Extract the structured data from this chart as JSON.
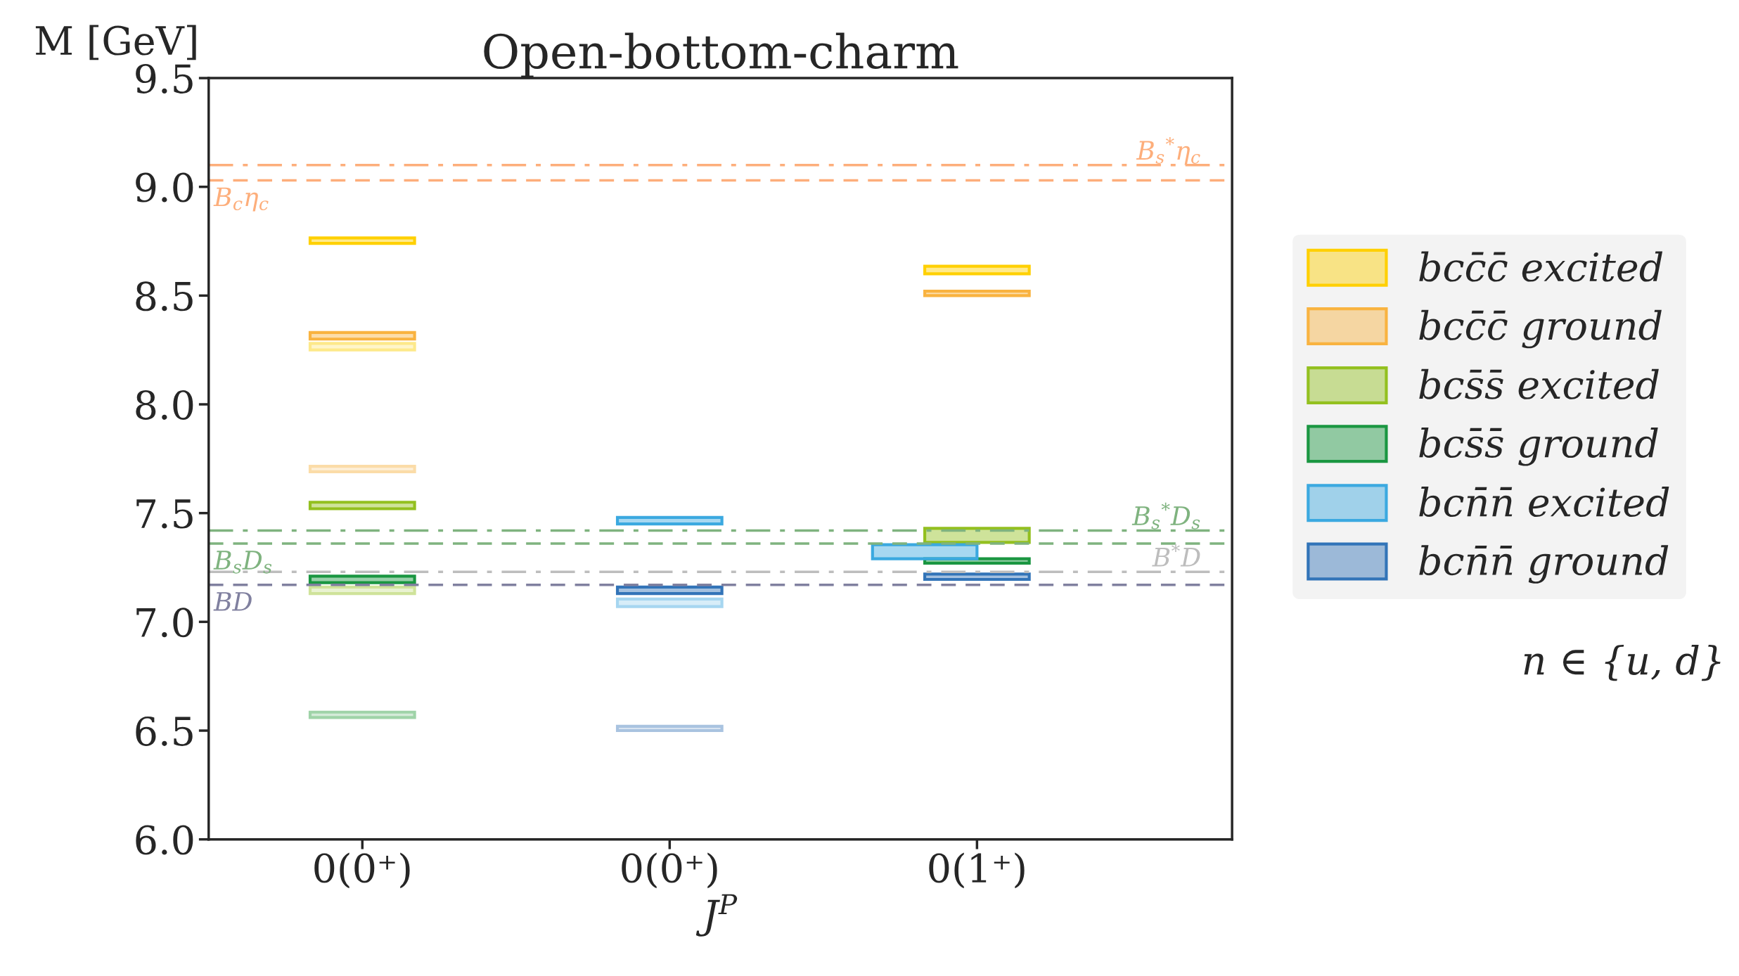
{
  "chart_data": {
    "type": "bar",
    "title": "Open-bottom-charm",
    "xlabel": "J$^{P}$",
    "ylabel": "M [GeV]",
    "categories": [
      "0(0⁺)",
      "0(0⁺)",
      "0(1⁺)"
    ],
    "series": [
      {
        "name": "bcc̄c̄ excited",
        "color": "#ffd000",
        "base": [
          8.74,
          null,
          8.6
        ],
        "values": [
          0.025,
          null,
          0.035
        ]
      },
      {
        "name": "bcc̄c̄ ground",
        "color": "#f9b340",
        "base": [
          8.3,
          null,
          8.5
        ],
        "values": [
          0.03,
          null,
          0.02
        ]
      },
      {
        "name": "bcs̄s̄ excited",
        "color": "#93c01f",
        "base": [
          7.52,
          null,
          7.365
        ],
        "values": [
          0.03,
          null,
          0.065
        ]
      },
      {
        "name": "bcs̄s̄ ground",
        "color": "#1a9641",
        "base": [
          7.18,
          null,
          7.27
        ],
        "values": [
          0.03,
          null,
          0.02
        ]
      },
      {
        "name": "bcn̄n̄ excited",
        "color": "#3ba9e0",
        "base": [
          null,
          7.45,
          7.29
        ],
        "values": [
          null,
          0.03,
          0.065
        ]
      },
      {
        "name": "bcn̄n̄ ground",
        "color": "#3274b8",
        "base": [
          null,
          7.13,
          7.195
        ],
        "values": [
          null,
          0.03,
          0.025
        ]
      },
      {
        "color": "#fde98a",
        "base": [
          8.25,
          null,
          null
        ],
        "values": [
          0.03,
          null,
          null
        ]
      },
      {
        "color": "#fbdca8",
        "base": [
          7.69,
          null,
          null
        ],
        "values": [
          0.025,
          null,
          null
        ]
      },
      {
        "color": "#cfe39a",
        "base": [
          7.13,
          null,
          null
        ],
        "values": [
          0.03,
          null,
          null
        ]
      },
      {
        "color": "#9fd3a8",
        "base": [
          6.56,
          null,
          null
        ],
        "values": [
          0.025,
          null,
          null
        ]
      },
      {
        "color": "#a6d6f0",
        "base": [
          null,
          7.07,
          null
        ],
        "values": [
          null,
          0.035,
          null
        ]
      },
      {
        "color": "#a9c3e0",
        "base": [
          null,
          6.5,
          null
        ],
        "values": [
          null,
          0.02,
          null
        ]
      }
    ],
    "ylim": [
      6.0,
      9.5
    ],
    "yticks": [
      {
        "value": 6.0,
        "label": "6.0"
      },
      {
        "value": 6.5,
        "label": "6.5"
      },
      {
        "value": 7.0,
        "label": "7.0"
      },
      {
        "value": 7.5,
        "label": "7.5"
      },
      {
        "value": 8.0,
        "label": "8.0"
      },
      {
        "value": 8.5,
        "label": "8.5"
      },
      {
        "value": 9.0,
        "label": "9.0"
      },
      {
        "value": 9.5,
        "label": "9.5"
      }
    ],
    "ref_lines": [
      {
        "axis": "y",
        "value": 9.1,
        "label": "B$_{s}$$^{*}$η$_{c}$",
        "color": "#fdae7b",
        "line_style": "dashdot"
      },
      {
        "axis": "y",
        "value": 9.03,
        "label": "B$_{c}$η$_{c}$",
        "color": "#fdae7b",
        "line_style": "dashed"
      },
      {
        "axis": "y",
        "value": 7.42,
        "label": "B$_{s}$$^{*}$D$_{s}$",
        "color": "#7fb37f",
        "line_style": "dashdot"
      },
      {
        "axis": "y",
        "value": 7.36,
        "label": "B$_{s}$D$_{s}$",
        "color": "#7fb37f",
        "line_style": "dashed"
      },
      {
        "axis": "y",
        "value": 7.23,
        "label": "B$^{*}$D",
        "color": "#bdbdbd",
        "line_style": "dashdot"
      },
      {
        "axis": "y",
        "value": 7.17,
        "label": "BD",
        "color": "#80809f",
        "line_style": "dashed"
      }
    ],
    "annotations": [
      "n ∈ {u, d}"
    ],
    "legend": "right",
    "grid": false
  }
}
